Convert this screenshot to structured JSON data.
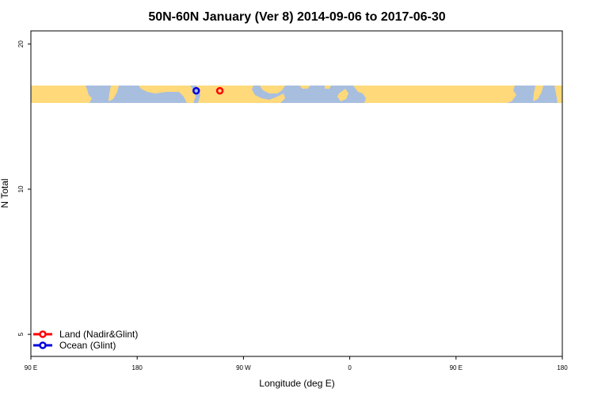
{
  "chart_data": {
    "type": "scatter",
    "title": "50N-60N January (Ver 8)   2014-09-06 to 2017-06-30",
    "xlabel": "Longitude (deg E)",
    "ylabel": "N Total",
    "x_tick_values": [
      90,
      180,
      270,
      360,
      450,
      540
    ],
    "x_tick_labels": [
      "90 E",
      "180",
      "90 W",
      "0",
      "90 E",
      "180"
    ],
    "xlim": [
      90,
      540
    ],
    "y_ticks": [
      5,
      10,
      20
    ],
    "ylim": [
      4.5,
      21.3
    ],
    "scale": "log",
    "map_band": {
      "description": "world map strip 50N-60N",
      "ocean_color": "#a8bedf",
      "land_color": "#ffd97a"
    },
    "series": [
      {
        "name": "Land (Nadir&Glint)",
        "color": "#ff0000",
        "points": [
          {
            "x": 250,
            "y": 16
          }
        ]
      },
      {
        "name": "Ocean (Glint)",
        "color": "#0000dd",
        "points": [
          {
            "x": 230,
            "y": 16
          }
        ]
      }
    ],
    "legend_placement": "bottom-left",
    "grid": false
  }
}
